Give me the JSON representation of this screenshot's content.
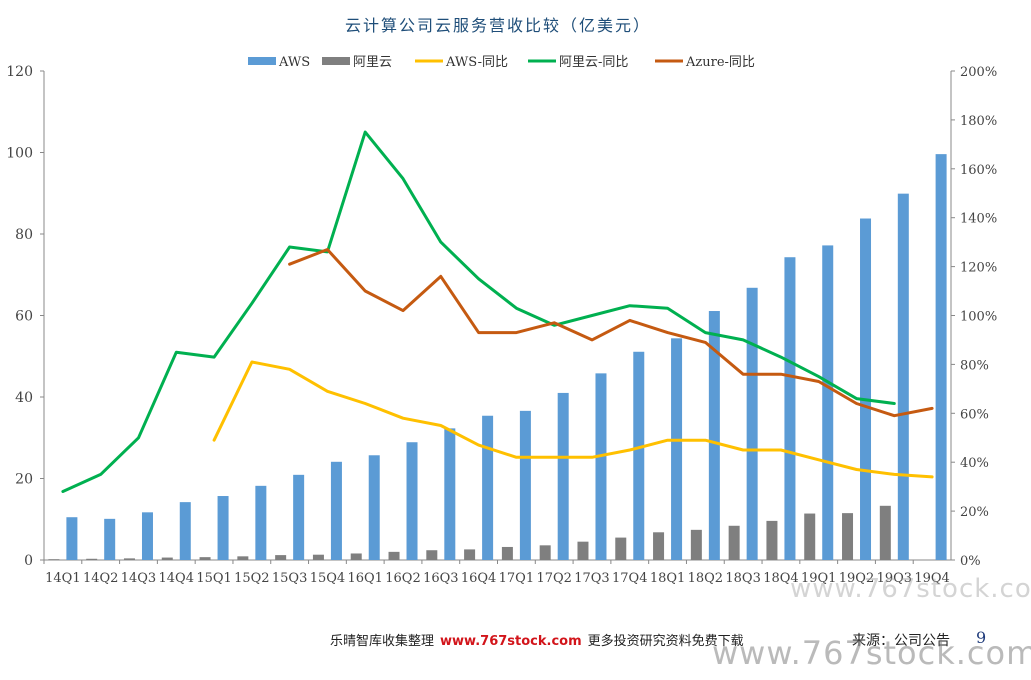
{
  "chart_data": {
    "type": "bar",
    "title": "云计算公司云服务营收比较（亿美元）",
    "categories": [
      "14Q1",
      "14Q2",
      "14Q3",
      "14Q4",
      "15Q1",
      "15Q2",
      "15Q3",
      "15Q4",
      "16Q1",
      "16Q2",
      "16Q3",
      "16Q4",
      "17Q1",
      "17Q2",
      "17Q3",
      "17Q4",
      "18Q1",
      "18Q2",
      "18Q3",
      "18Q4",
      "19Q1",
      "19Q2",
      "19Q3",
      "19Q4"
    ],
    "y_left": {
      "range": [
        0,
        120
      ],
      "ticks": [
        "0",
        "20",
        "40",
        "60",
        "80",
        "100",
        "120"
      ]
    },
    "y_right": {
      "range": [
        0,
        200
      ],
      "ticks": [
        "0%",
        "20%",
        "40%",
        "60%",
        "80%",
        "100%",
        "120%",
        "140%",
        "160%",
        "180%",
        "200%"
      ]
    },
    "legend_position": "top",
    "bar_series": [
      {
        "name": "AWS",
        "color": "#5b9bd5",
        "values": [
          10.5,
          10.1,
          11.7,
          14.2,
          15.7,
          18.2,
          20.9,
          24.1,
          25.7,
          28.9,
          32.3,
          35.4,
          36.6,
          41.0,
          45.8,
          51.1,
          54.4,
          61.1,
          66.8,
          74.3,
          77.2,
          83.8,
          89.9,
          99.6
        ]
      },
      {
        "name": "阿里云",
        "color": "#7f7f7f",
        "values": [
          0.2,
          0.3,
          0.4,
          0.6,
          0.7,
          0.9,
          1.2,
          1.3,
          1.6,
          2.0,
          2.4,
          2.6,
          3.2,
          3.6,
          4.5,
          5.5,
          6.8,
          7.4,
          8.4,
          9.6,
          11.4,
          11.5,
          13.3,
          null
        ]
      }
    ],
    "line_series": [
      {
        "name": "AWS-同比",
        "color": "#ffc000",
        "values": [
          null,
          null,
          null,
          null,
          49,
          81,
          78,
          69,
          64,
          58,
          55,
          47,
          42,
          42,
          42,
          45,
          49,
          49,
          45,
          45,
          41,
          37,
          35,
          34
        ]
      },
      {
        "name": "阿里云-同比",
        "color": "#00b050",
        "values": [
          28,
          35,
          50,
          85,
          83,
          105,
          128,
          126,
          175,
          156,
          130,
          115,
          103,
          96,
          100,
          104,
          103,
          93,
          90,
          83,
          75,
          66,
          64,
          null
        ]
      },
      {
        "name": "Azure-同比",
        "color": "#c55a11",
        "values": [
          null,
          null,
          null,
          null,
          null,
          null,
          121,
          127,
          110,
          102,
          116,
          93,
          93,
          97,
          90,
          98,
          93,
          89,
          76,
          76,
          73,
          64,
          59,
          62
        ]
      }
    ]
  },
  "footer": {
    "text_before": "乐晴智库收集整理",
    "site": "www.767stock.com",
    "text_after": "更多投资研究资料免费下载",
    "source": "来源：公司公告",
    "page": "9"
  },
  "watermark": {
    "small": "www.767stock.com",
    "large": "www.767stock.com"
  }
}
